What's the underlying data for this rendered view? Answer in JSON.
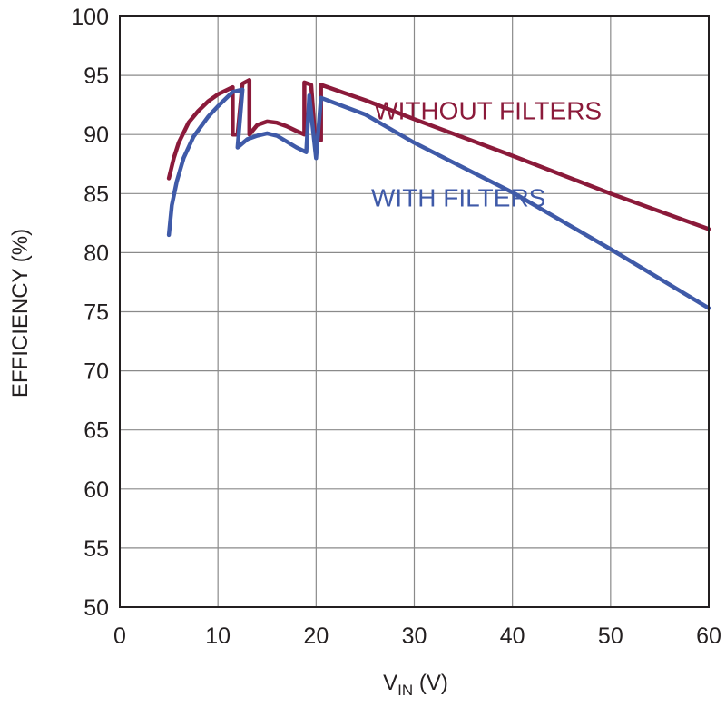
{
  "chart_data": {
    "type": "line",
    "title": "",
    "xlabel_main": "V",
    "xlabel_sub": "IN",
    "xlabel_unit": " (V)",
    "ylabel": "EFFICIENCY (%)",
    "xlim": [
      0,
      60
    ],
    "ylim": [
      50,
      100
    ],
    "x_ticks": [
      "0",
      "10",
      "20",
      "30",
      "40",
      "50",
      "60"
    ],
    "y_ticks": [
      "50",
      "55",
      "60",
      "65",
      "70",
      "75",
      "80",
      "85",
      "90",
      "95",
      "100"
    ],
    "grid": true,
    "legend": "inline",
    "series": [
      {
        "name": "WITHOUT FILTERS",
        "color": "#8b1a3a",
        "label_x": 37.5,
        "label_y": 91.3,
        "points": [
          [
            5.0,
            86.3
          ],
          [
            5.5,
            88.0
          ],
          [
            6.0,
            89.3
          ],
          [
            7.0,
            91.0
          ],
          [
            8.0,
            92.0
          ],
          [
            9.0,
            92.8
          ],
          [
            10.0,
            93.4
          ],
          [
            11.5,
            94.0
          ],
          [
            11.5,
            90.0
          ],
          [
            12.0,
            90.0
          ],
          [
            12.5,
            94.3
          ],
          [
            13.2,
            94.6
          ],
          [
            13.2,
            90.0
          ],
          [
            14.0,
            90.8
          ],
          [
            15.0,
            91.1
          ],
          [
            16.0,
            91.0
          ],
          [
            17.0,
            90.7
          ],
          [
            18.0,
            90.3
          ],
          [
            18.8,
            90.0
          ],
          [
            18.8,
            94.4
          ],
          [
            19.5,
            94.2
          ],
          [
            19.9,
            89.5
          ],
          [
            20.5,
            89.5
          ],
          [
            20.5,
            94.2
          ],
          [
            25.0,
            92.9
          ],
          [
            30.0,
            91.3
          ],
          [
            40.0,
            88.2
          ],
          [
            50.0,
            85.0
          ],
          [
            60.0,
            82.0
          ]
        ]
      },
      {
        "name": "WITH FILTERS",
        "color": "#3f5aa8",
        "label_x": 34.5,
        "label_y": 83.9,
        "points": [
          [
            5.0,
            81.5
          ],
          [
            5.3,
            84.0
          ],
          [
            5.8,
            86.0
          ],
          [
            6.5,
            88.0
          ],
          [
            7.5,
            89.8
          ],
          [
            9.0,
            91.5
          ],
          [
            10.0,
            92.4
          ],
          [
            11.5,
            93.6
          ],
          [
            12.5,
            93.8
          ],
          [
            12.0,
            88.9
          ],
          [
            13.0,
            89.6
          ],
          [
            14.0,
            89.9
          ],
          [
            15.0,
            90.1
          ],
          [
            16.0,
            89.9
          ],
          [
            17.0,
            89.4
          ],
          [
            18.0,
            88.9
          ],
          [
            19.0,
            88.5
          ],
          [
            19.3,
            93.3
          ],
          [
            20.0,
            88.0
          ],
          [
            20.5,
            93.1
          ],
          [
            25.0,
            91.7
          ],
          [
            30.0,
            89.3
          ],
          [
            40.0,
            85.1
          ],
          [
            50.0,
            80.3
          ],
          [
            60.0,
            75.3
          ]
        ]
      }
    ]
  }
}
